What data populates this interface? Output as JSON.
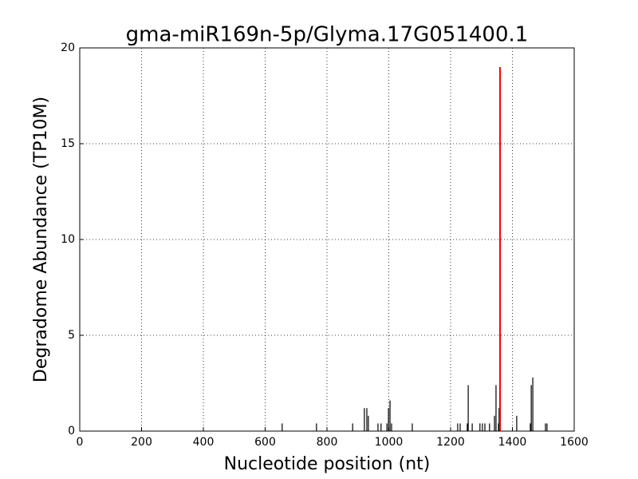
{
  "chart_data": {
    "type": "vlines",
    "title": "gma-miR169n-5p/Glyma.17G051400.1",
    "x_label": "Nucleotide position (nt)",
    "y_label": "Degradome Abundance (TP10M)",
    "x": [
      655,
      766,
      883,
      921,
      929,
      934,
      965,
      975,
      994,
      999,
      1004,
      1009,
      1076,
      1223,
      1231,
      1254,
      1257,
      1270,
      1295,
      1303,
      1311,
      1326,
      1342,
      1347,
      1355,
      1357,
      1414,
      1458,
      1461,
      1466,
      1507,
      1512
    ],
    "values": [
      0.4,
      0.4,
      0.4,
      1.2,
      1.2,
      0.8,
      0.4,
      0.4,
      0.4,
      1.2,
      1.6,
      0.4,
      0.4,
      0.4,
      0.4,
      0.4,
      2.4,
      0.4,
      0.4,
      0.4,
      0.4,
      0.4,
      0.8,
      2.4,
      0.4,
      1.2,
      0.8,
      0.4,
      2.4,
      2.8,
      0.4,
      0.4
    ],
    "color": "#000000",
    "highlight": {
      "x": 1360,
      "value": 19,
      "color": "#ff0000"
    },
    "xlim": [
      0,
      1600
    ],
    "xticks": [
      0,
      200,
      400,
      600,
      800,
      1000,
      1200,
      1400,
      1600
    ],
    "ylim": [
      0,
      20
    ],
    "yticks": [
      0,
      5,
      10,
      15,
      20
    ],
    "grid": true
  }
}
